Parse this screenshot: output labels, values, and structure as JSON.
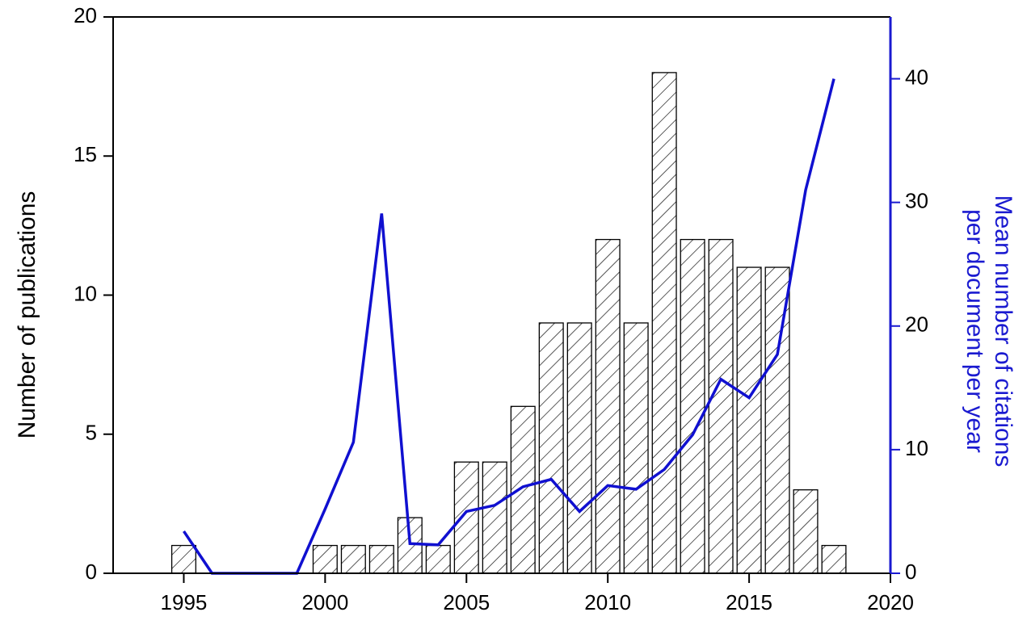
{
  "chart_data": {
    "type": "bar",
    "x": [
      1995,
      1996,
      1997,
      1998,
      1999,
      2000,
      2001,
      2002,
      2003,
      2004,
      2005,
      2006,
      2007,
      2008,
      2009,
      2010,
      2011,
      2012,
      2013,
      2014,
      2015,
      2016,
      2017,
      2018
    ],
    "series": [
      {
        "type": "bar",
        "color": "#000000",
        "values": [
          1,
          0,
          0,
          0,
          0,
          1,
          1,
          1,
          2,
          1,
          4,
          4,
          6,
          9,
          9,
          12,
          9,
          18,
          12,
          12,
          11,
          11,
          3,
          1
        ]
      },
      {
        "type": "line",
        "axis": "y2",
        "color": "#1010d0",
        "values": [
          3.4,
          0,
          0,
          0,
          0,
          5.2,
          10.6,
          29.1,
          2.4,
          2.3,
          5.0,
          5.5,
          7.0,
          7.6,
          5.0,
          7.1,
          6.8,
          8.4,
          11.2,
          15.7,
          14.2,
          17.7,
          31.0,
          40.0
        ]
      }
    ],
    "ylabel": "Number of publications",
    "y2label": [
      "Mean number of citations",
      "per document per year"
    ],
    "xlim": [
      1992.5,
      2020
    ],
    "xticks": [
      1995,
      2000,
      2005,
      2010,
      2015,
      2020
    ],
    "ylim": [
      0,
      20
    ],
    "yticks": [
      0,
      5,
      10,
      15,
      20
    ],
    "y2lim": [
      0,
      45
    ],
    "y2ticks": [
      0,
      10,
      20,
      30,
      40
    ],
    "y2color": "#1a1ad0"
  }
}
